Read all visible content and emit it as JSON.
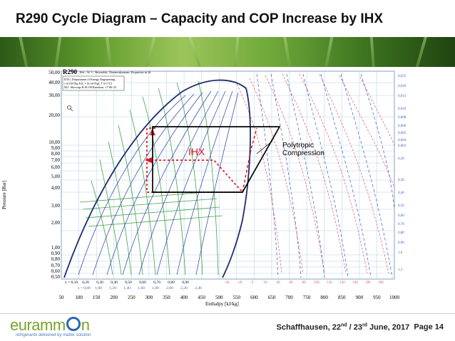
{
  "slide": {
    "title_main": "R290 Cycle Diagram",
    "title_sep": " – ",
    "title_rest": "Capacity and COP Increase by IHX"
  },
  "chart": {
    "header_bold": "R290",
    "header_ref": "Ref.: W. C. Reynolds: Thermodynamic Properties in SI",
    "info_lines": [
      "DTU, Department of Energy Engineering",
      "s in [kJ/(kg K)]; v in [m³/kg]; T in [°C]",
      "M.J. Skovrup & H.J.H Knudsen. 17-06-23"
    ],
    "y_label": "Pressure [Bar]",
    "x_label": "Enthalpy [kJ/kg]",
    "y_ticks": [
      "50,00",
      "40,00",
      "30,00",
      "20,00",
      "10,00",
      "9,00",
      "8,00",
      "7,00",
      "6,00",
      "5,00",
      "4,00",
      "3,00",
      "2,00",
      "1,00",
      "0,90",
      "0,80",
      "0,70",
      "0,60",
      "0,50"
    ],
    "x_ticks": [
      "50",
      "100",
      "150",
      "200",
      "250",
      "300",
      "350",
      "400",
      "450",
      "500",
      "550",
      "600",
      "650",
      "700",
      "750",
      "800",
      "850",
      "900",
      "950",
      "1000"
    ],
    "quality_labels": [
      "x = 0,10",
      "0,20",
      "0,30",
      "0,40",
      "0,50",
      "0,60",
      "0,70",
      "0,80",
      "0,90"
    ],
    "entropy_labels": [
      "s = 0,80",
      "1,00",
      "1,20",
      "1,40",
      "1,60",
      "1,80",
      "2,00",
      "2,20",
      "2,40"
    ],
    "temp_labels_bottom": [
      "-40",
      "-20",
      "0",
      "20",
      "40",
      "60",
      "80",
      "100",
      "120",
      "140",
      "160",
      "180",
      "200"
    ],
    "volume_labels_right": [
      "0,025",
      "0,020",
      "0,015",
      "0,010",
      "0,008",
      "0,006",
      "0,005",
      "0,004",
      "0,003",
      "0,20",
      "0,30",
      "0,40",
      "0,50",
      "0,60",
      "0,70",
      "0,80",
      "0,90",
      "1,0",
      "1,5"
    ],
    "annotation_ihx": "IHX",
    "annotation_poly_1": "Polytropic",
    "annotation_poly_2": "Compression",
    "colors": {
      "grid": "#9ec4dc",
      "saturation": "#1d2d6e",
      "isotherm_green": "#3fa34a",
      "isentrope_blue": "#4057c8",
      "isochore_red": "#e2556b",
      "cycle_black": "#000000",
      "ihx_red": "#e0141a"
    }
  },
  "footer": {
    "logo_pre": "eurammon",
    "logo_tagline": "refrigerants delivered by matter solution",
    "event_text": "Schaffhausen, 22nd / 23rd June, 2017",
    "page_label": "Page 14"
  }
}
